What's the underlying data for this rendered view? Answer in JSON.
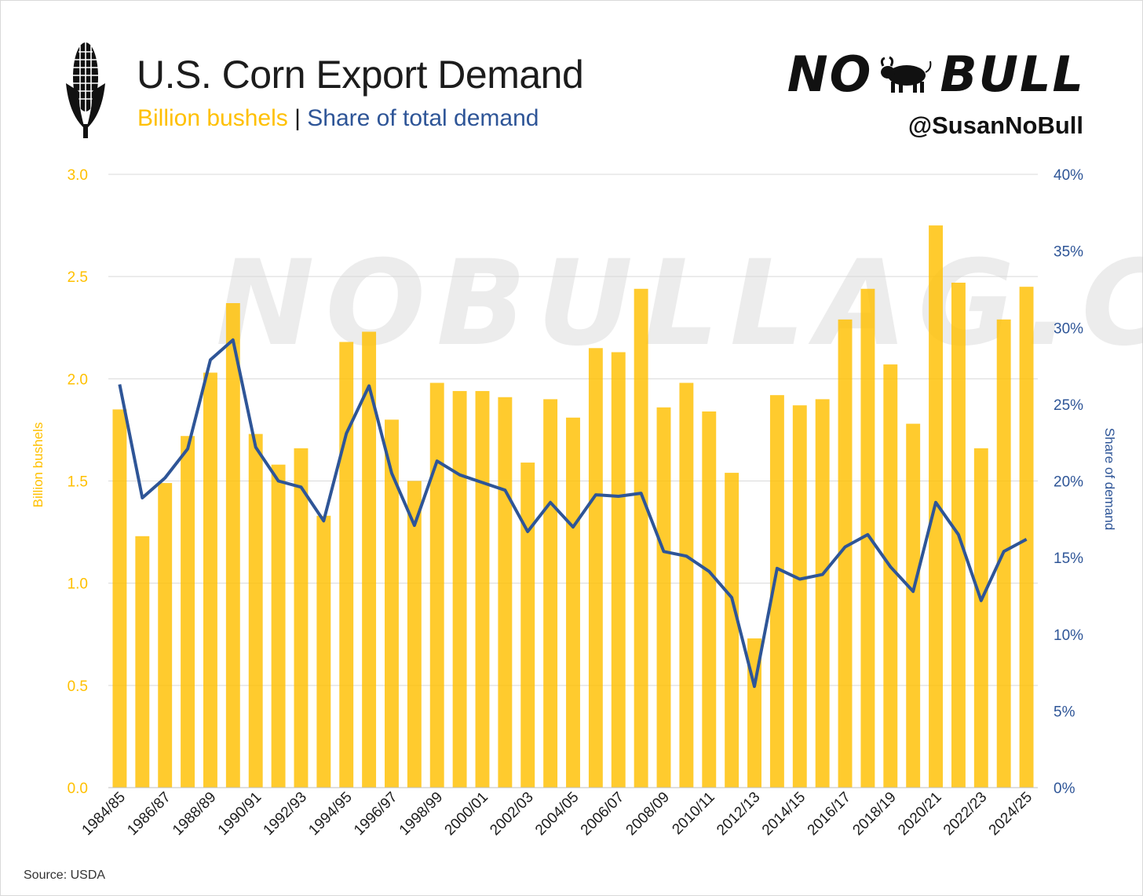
{
  "header": {
    "title": "U.S. Corn Export Demand",
    "subtitle_bars": "Billion bushels",
    "subtitle_sep": " | ",
    "subtitle_line": "Share of total demand",
    "brand_left": "NO",
    "brand_right": "BULL",
    "handle": "@SusanNoBull",
    "watermark": "NOBULLAG.COM"
  },
  "footer": {
    "source": "Source: USDA"
  },
  "colors": {
    "bar": "#ffc000",
    "line": "#2e5597",
    "grid": "#d9d9d9",
    "axis_left": "#ffc000",
    "axis_right": "#2e5597"
  },
  "chart_data": {
    "type": "bar",
    "title": "U.S. Corn Export Demand",
    "categories": [
      "1984/85",
      "1985/86",
      "1986/87",
      "1987/88",
      "1988/89",
      "1989/90",
      "1990/91",
      "1991/92",
      "1992/93",
      "1993/94",
      "1994/95",
      "1995/96",
      "1996/97",
      "1997/98",
      "1998/99",
      "1999/00",
      "2000/01",
      "2001/02",
      "2002/03",
      "2003/04",
      "2004/05",
      "2005/06",
      "2006/07",
      "2007/08",
      "2008/09",
      "2009/10",
      "2010/11",
      "2011/12",
      "2012/13",
      "2013/14",
      "2014/15",
      "2015/16",
      "2016/17",
      "2017/18",
      "2018/19",
      "2019/20",
      "2020/21",
      "2021/22",
      "2022/23",
      "2023/24",
      "2024/25"
    ],
    "tick_labels": [
      "1984/85",
      "1986/87",
      "1988/89",
      "1990/91",
      "1992/93",
      "1994/95",
      "1996/97",
      "1998/99",
      "2000/01",
      "2002/03",
      "2004/05",
      "2006/07",
      "2008/09",
      "2010/11",
      "2012/13",
      "2014/15",
      "2016/17",
      "2018/19",
      "2020/21",
      "2022/23",
      "2024/25"
    ],
    "series": [
      {
        "name": "Billion bushels",
        "axis": "left",
        "kind": "bar",
        "values": [
          1.85,
          1.23,
          1.49,
          1.72,
          2.03,
          2.37,
          1.73,
          1.58,
          1.66,
          1.33,
          2.18,
          2.23,
          1.8,
          1.5,
          1.98,
          1.94,
          1.94,
          1.91,
          1.59,
          1.9,
          1.81,
          2.15,
          2.13,
          2.44,
          1.86,
          1.98,
          1.84,
          1.54,
          0.73,
          1.92,
          1.87,
          1.9,
          2.29,
          2.44,
          2.07,
          1.78,
          2.75,
          2.47,
          1.66,
          2.29,
          2.45
        ]
      },
      {
        "name": "Share of demand",
        "axis": "right",
        "kind": "line",
        "values": [
          26.3,
          18.9,
          20.2,
          22.1,
          27.9,
          29.2,
          22.2,
          20.0,
          19.6,
          17.4,
          23.1,
          26.2,
          20.5,
          17.1,
          21.3,
          20.4,
          19.9,
          19.4,
          16.7,
          18.6,
          17.0,
          19.1,
          19.0,
          19.2,
          15.4,
          15.1,
          14.1,
          12.4,
          6.6,
          14.3,
          13.6,
          13.9,
          15.7,
          16.5,
          14.4,
          12.8,
          18.6,
          16.5,
          12.2,
          15.4,
          16.2
        ]
      }
    ],
    "ylabel": "Billion bushels",
    "y2label": "Share of demand",
    "ylim": [
      0,
      3.0
    ],
    "yticks": [
      "0.0",
      "0.5",
      "1.0",
      "1.5",
      "2.0",
      "2.5",
      "3.0"
    ],
    "y2lim": [
      0,
      40
    ],
    "y2ticks": [
      "0%",
      "5%",
      "10%",
      "15%",
      "20%",
      "25%",
      "30%",
      "35%",
      "40%"
    ],
    "grid": true
  }
}
